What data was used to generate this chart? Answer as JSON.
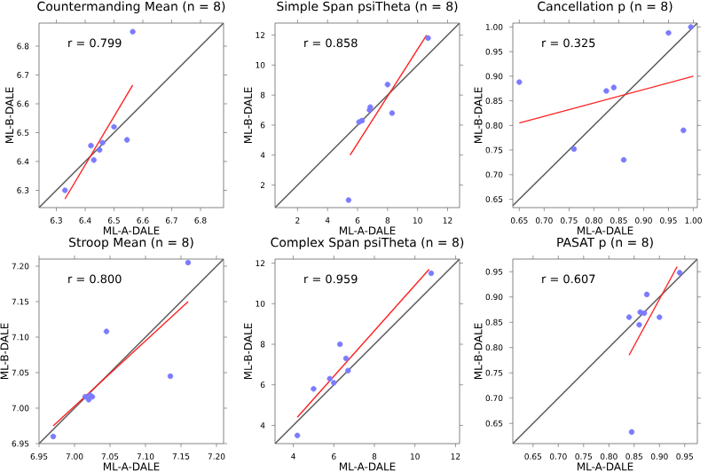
{
  "chart_data": [
    {
      "type": "scatter",
      "title": "Countermanding Mean (n = 8)",
      "xlabel": "ML-A-DALE",
      "ylabel": "ML-B-DALE",
      "annotations": [
        "r = 0.799"
      ],
      "xlim": [
        6.24,
        6.88
      ],
      "ylim": [
        6.24,
        6.88
      ],
      "xticks": [
        6.3,
        6.4,
        6.5,
        6.6,
        6.7,
        6.8
      ],
      "yticks": [
        6.3,
        6.4,
        6.5,
        6.6,
        6.7,
        6.8
      ],
      "series": [
        {
          "type": "scatter",
          "marker": "circle",
          "color": "#7b7bff",
          "x": [
            6.33,
            6.42,
            6.43,
            6.45,
            6.46,
            6.5,
            6.545,
            6.565
          ],
          "values": [
            6.3,
            6.455,
            6.405,
            6.44,
            6.465,
            6.52,
            6.475,
            6.85
          ]
        },
        {
          "type": "line",
          "marker": "none",
          "color": "#555555",
          "x": [
            6.24,
            6.88
          ],
          "values": [
            6.24,
            6.88
          ]
        },
        {
          "type": "line",
          "marker": "none",
          "color": "#ff2020",
          "x": [
            6.33,
            6.565
          ],
          "values": [
            6.27,
            6.665
          ]
        }
      ]
    },
    {
      "type": "scatter",
      "title": "Simple Span psiTheta (n = 8)",
      "xlabel": "ML-A-DALE",
      "ylabel": "ML-B-DALE",
      "annotations": [
        "r = 0.858"
      ],
      "xlim": [
        0.5,
        12.8
      ],
      "ylim": [
        0.5,
        12.8
      ],
      "xticks": [
        2,
        4,
        6,
        8,
        10,
        12
      ],
      "yticks": [
        2,
        4,
        6,
        8,
        10,
        12
      ],
      "series": [
        {
          "type": "scatter",
          "marker": "circle",
          "color": "#7b7bff",
          "x": [
            5.4,
            6.1,
            6.3,
            6.8,
            6.85,
            8.0,
            8.3,
            10.7
          ],
          "values": [
            1.0,
            6.2,
            6.3,
            7.0,
            7.2,
            8.7,
            6.8,
            11.8
          ]
        },
        {
          "type": "line",
          "marker": "none",
          "color": "#555555",
          "x": [
            0.5,
            12.8
          ],
          "values": [
            0.5,
            12.8
          ]
        },
        {
          "type": "line",
          "marker": "none",
          "color": "#ff2020",
          "x": [
            5.5,
            10.6
          ],
          "values": [
            4.0,
            12.0
          ]
        }
      ]
    },
    {
      "type": "scatter",
      "title": "Cancellation p (n = 8)",
      "xlabel": "ML-A-DALE",
      "ylabel": "ML-B-DALE",
      "annotations": [
        "r = 0.325"
      ],
      "xlim": [
        0.637,
        1.008
      ],
      "ylim": [
        0.633,
        1.008
      ],
      "xticks": [
        0.65,
        {
          "value": 0.7,
          "label": "0.70"
        },
        0.75,
        {
          "value": 0.8,
          "label": "0.80"
        },
        0.85,
        {
          "value": 0.9,
          "label": "0.90"
        },
        0.95,
        {
          "value": 1.0,
          "label": "1.00"
        }
      ],
      "yticks": [
        0.65,
        {
          "value": 0.7,
          "label": "0.70"
        },
        0.75,
        {
          "value": 0.8,
          "label": "0.80"
        },
        0.85,
        {
          "value": 0.9,
          "label": "0.90"
        },
        0.95,
        {
          "value": 1.0,
          "label": "1.00"
        }
      ],
      "series": [
        {
          "type": "scatter",
          "marker": "circle",
          "color": "#7b7bff",
          "x": [
            0.65,
            0.76,
            0.825,
            0.84,
            0.86,
            0.95,
            0.98,
            0.995
          ],
          "values": [
            0.888,
            0.752,
            0.87,
            0.877,
            0.73,
            0.988,
            0.79,
            1.0
          ]
        },
        {
          "type": "line",
          "marker": "none",
          "color": "#555555",
          "x": [
            0.637,
            1.008
          ],
          "values": [
            0.637,
            1.008
          ]
        },
        {
          "type": "line",
          "marker": "none",
          "color": "#ff2020",
          "x": [
            0.65,
            1.0
          ],
          "values": [
            0.805,
            0.9
          ]
        }
      ]
    },
    {
      "type": "scatter",
      "title": "Stroop Mean (n = 8)",
      "xlabel": "ML-A-DALE",
      "ylabel": "ML-B-DALE",
      "annotations": [
        "r = 0.800"
      ],
      "xlim": [
        6.95,
        7.21
      ],
      "ylim": [
        6.95,
        7.21
      ],
      "xticks": [
        6.95,
        {
          "value": 7.0,
          "label": "7.00"
        },
        7.05,
        {
          "value": 7.1,
          "label": "7.10"
        },
        7.15,
        {
          "value": 7.2,
          "label": "7.20"
        }
      ],
      "yticks": [
        6.95,
        {
          "value": 7.0,
          "label": "7.00"
        },
        7.05,
        {
          "value": 7.1,
          "label": "7.10"
        },
        7.15,
        {
          "value": 7.2,
          "label": "7.20"
        }
      ],
      "series": [
        {
          "type": "scatter",
          "marker": "circle",
          "color": "#7b7bff",
          "x": [
            6.97,
            7.015,
            7.02,
            7.022,
            7.025,
            7.045,
            7.135,
            7.16
          ],
          "values": [
            6.96,
            7.016,
            7.012,
            7.018,
            7.016,
            7.108,
            7.045,
            7.205
          ]
        },
        {
          "type": "line",
          "marker": "none",
          "color": "#555555",
          "x": [
            6.95,
            7.21
          ],
          "values": [
            6.95,
            7.21
          ]
        },
        {
          "type": "line",
          "marker": "none",
          "color": "#ff2020",
          "x": [
            6.97,
            7.16
          ],
          "values": [
            6.975,
            7.15
          ]
        }
      ]
    },
    {
      "type": "scatter",
      "title": "Complex Span psiTheta (n = 8)",
      "xlabel": "ML-A-DALE",
      "ylabel": "ML-B-DALE",
      "annotations": [
        "r = 0.959"
      ],
      "xlim": [
        3.1,
        12.2
      ],
      "ylim": [
        3.1,
        12.2
      ],
      "xticks": [
        4,
        6,
        8,
        10,
        12
      ],
      "yticks": [
        4,
        6,
        8,
        10,
        12
      ],
      "series": [
        {
          "type": "scatter",
          "marker": "circle",
          "color": "#7b7bff",
          "x": [
            4.2,
            5.0,
            5.8,
            6.0,
            6.3,
            6.6,
            6.7,
            10.8
          ],
          "values": [
            3.5,
            5.8,
            6.3,
            6.1,
            8.0,
            7.3,
            6.7,
            11.5
          ]
        },
        {
          "type": "line",
          "marker": "none",
          "color": "#555555",
          "x": [
            3.1,
            12.2
          ],
          "values": [
            3.1,
            12.2
          ]
        },
        {
          "type": "line",
          "marker": "none",
          "color": "#ff2020",
          "x": [
            4.2,
            10.7
          ],
          "values": [
            4.4,
            11.7
          ]
        }
      ]
    },
    {
      "type": "scatter",
      "title": "PASAT p (n = 8)",
      "xlabel": "ML-A-DALE",
      "ylabel": "ML-B-DALE",
      "annotations": [
        "r = 0.607"
      ],
      "xlim": [
        0.61,
        0.975
      ],
      "ylim": [
        0.61,
        0.975
      ],
      "xticks": [
        0.65,
        {
          "value": 0.7,
          "label": "0.70"
        },
        0.75,
        {
          "value": 0.8,
          "label": "0.80"
        },
        0.85,
        {
          "value": 0.9,
          "label": "0.90"
        },
        0.95
      ],
      "yticks": [
        0.65,
        {
          "value": 0.7,
          "label": "0.70"
        },
        0.75,
        {
          "value": 0.8,
          "label": "0.80"
        },
        0.85,
        {
          "value": 0.9,
          "label": "0.90"
        },
        0.95
      ],
      "series": [
        {
          "type": "scatter",
          "marker": "circle",
          "color": "#7b7bff",
          "x": [
            0.84,
            0.845,
            0.86,
            0.862,
            0.87,
            0.875,
            0.9,
            0.94
          ],
          "values": [
            0.86,
            0.633,
            0.845,
            0.87,
            0.868,
            0.905,
            0.86,
            0.948
          ]
        },
        {
          "type": "line",
          "marker": "none",
          "color": "#555555",
          "x": [
            0.61,
            0.975
          ],
          "values": [
            0.61,
            0.975
          ]
        },
        {
          "type": "line",
          "marker": "none",
          "color": "#ff2020",
          "x": [
            0.84,
            0.935
          ],
          "values": [
            0.785,
            0.96
          ]
        }
      ]
    }
  ]
}
